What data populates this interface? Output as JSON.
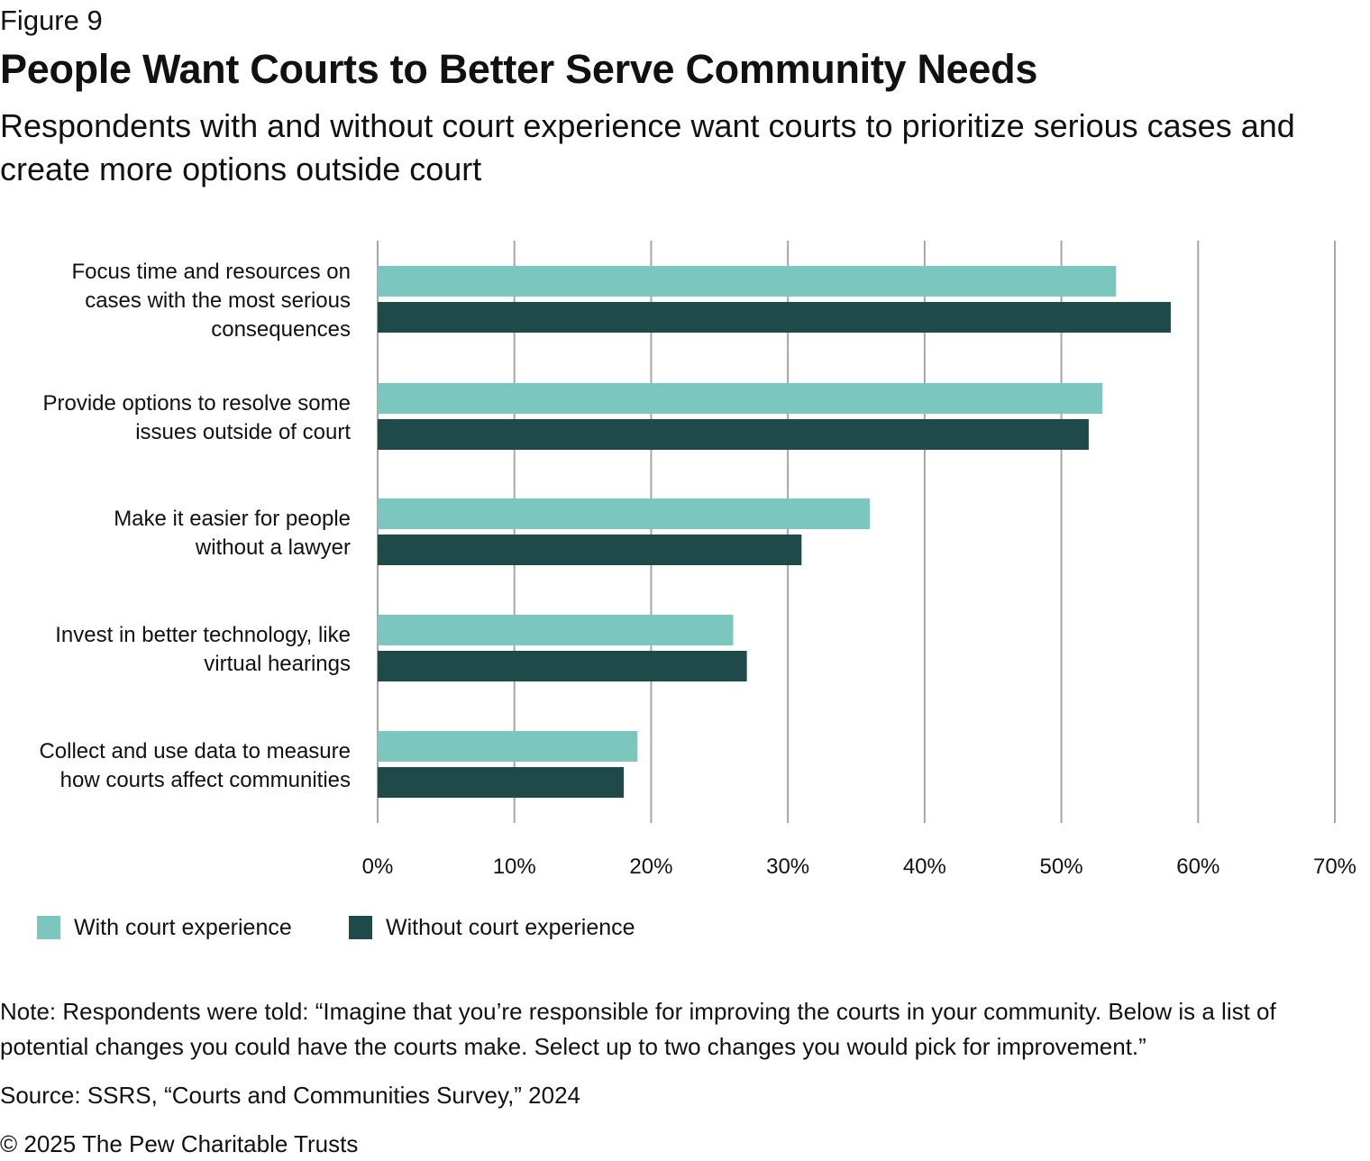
{
  "figure_label": "Figure 9",
  "chart_data": {
    "type": "bar",
    "orientation": "horizontal",
    "title": "People Want Courts to Better Serve Community Needs",
    "subtitle": "Respondents with and without court experience want courts to prioritize serious cases and create more options outside court",
    "categories": [
      [
        "Focus time and resources on",
        "cases with the most serious",
        "consequences"
      ],
      [
        "Provide options to resolve some",
        "issues outside of court"
      ],
      [
        "Make it easier for people",
        "without a lawyer"
      ],
      [
        "Invest in better technology, like",
        "virtual hearings"
      ],
      [
        "Collect and use data to measure",
        "how courts affect communities"
      ]
    ],
    "series": [
      {
        "name": "With court experience",
        "color": "#7bc6bf",
        "values": [
          54,
          53,
          36,
          26,
          19
        ]
      },
      {
        "name": "Without court experience",
        "color": "#1e4a4a",
        "values": [
          58,
          52,
          31,
          27,
          18
        ]
      }
    ],
    "xlim": [
      0,
      70
    ],
    "xticks": [
      "0%",
      "10%",
      "20%",
      "30%",
      "40%",
      "50%",
      "60%",
      "70%"
    ],
    "grid": true,
    "legend_position": "bottom-left"
  },
  "note": "Note: Respondents were told: “Imagine that you’re responsible for improving the courts in your community. Below is a list of potential changes you could have the courts make. Select up to two changes you would pick for improvement.”",
  "source": "Source: SSRS, “Courts and Communities Survey,” 2024",
  "copyright": "© 2025 The Pew Charitable Trusts"
}
